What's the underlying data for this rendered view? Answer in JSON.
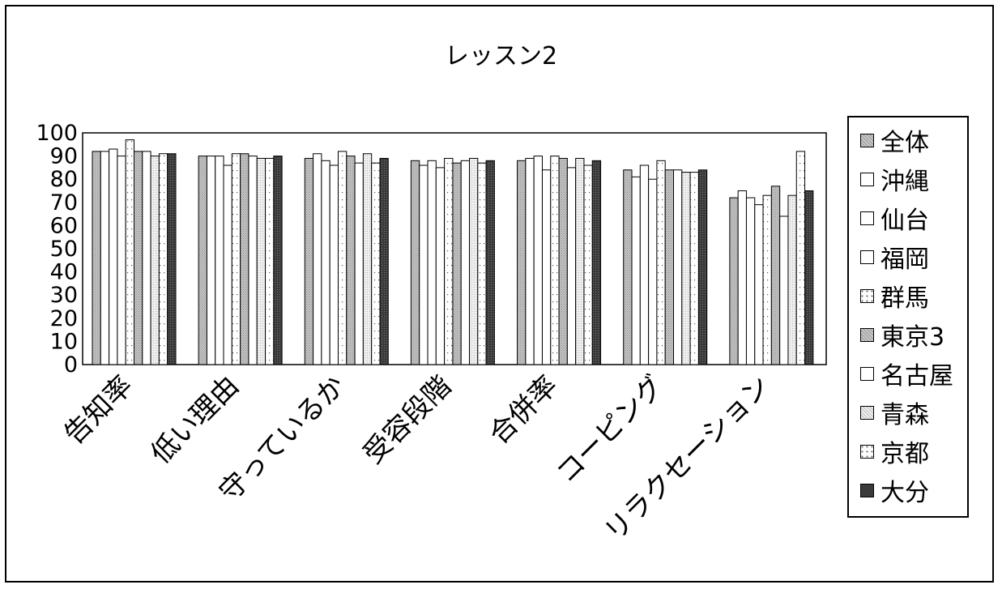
{
  "chart_data": {
    "type": "bar",
    "title": "レッスン2",
    "xlabel": "",
    "ylabel": "",
    "ylim": [
      0,
      100
    ],
    "yticks": [
      "0",
      "10",
      "20",
      "30",
      "40",
      "50",
      "60",
      "70",
      "80",
      "90",
      "100"
    ],
    "grid": false,
    "legend_position": "right",
    "categories": [
      "告知率",
      "低い理由",
      "守っているか",
      "受容段階",
      "合併率",
      "コーピング",
      "リラクセーション"
    ],
    "series": [
      {
        "name": "全体",
        "fill": "#bdbdbd",
        "pattern": "dense",
        "values": [
          92,
          90,
          89,
          88,
          88,
          84,
          72
        ]
      },
      {
        "name": "沖縄",
        "fill": "#ffffff",
        "pattern": "none",
        "values": [
          92,
          90,
          91,
          86,
          89,
          81,
          75
        ]
      },
      {
        "name": "仙台",
        "fill": "#ffffff",
        "pattern": "none",
        "values": [
          93,
          90,
          88,
          88,
          90,
          86,
          72
        ]
      },
      {
        "name": "福岡",
        "fill": "#ffffff",
        "pattern": "none",
        "values": [
          90,
          86,
          86,
          85,
          84,
          80,
          69
        ]
      },
      {
        "name": "群馬",
        "fill": "#ffffff",
        "pattern": "dots",
        "values": [
          97,
          91,
          92,
          89,
          90,
          88,
          73
        ]
      },
      {
        "name": "東京3",
        "fill": "#bdbdbd",
        "pattern": "dense",
        "values": [
          92,
          91,
          90,
          87,
          89,
          84,
          77
        ]
      },
      {
        "name": "名古屋",
        "fill": "#ffffff",
        "pattern": "none",
        "values": [
          92,
          90,
          87,
          88,
          85,
          84,
          64
        ]
      },
      {
        "name": "青森",
        "fill": "#ededed",
        "pattern": "light",
        "values": [
          90,
          89,
          91,
          89,
          89,
          83,
          73
        ]
      },
      {
        "name": "京都",
        "fill": "#ffffff",
        "pattern": "dots",
        "values": [
          91,
          89,
          87,
          87,
          86,
          83,
          92
        ]
      },
      {
        "name": "大分",
        "fill": "#3a3a3a",
        "pattern": "dark",
        "values": [
          91,
          90,
          89,
          88,
          88,
          84,
          75
        ]
      }
    ]
  }
}
